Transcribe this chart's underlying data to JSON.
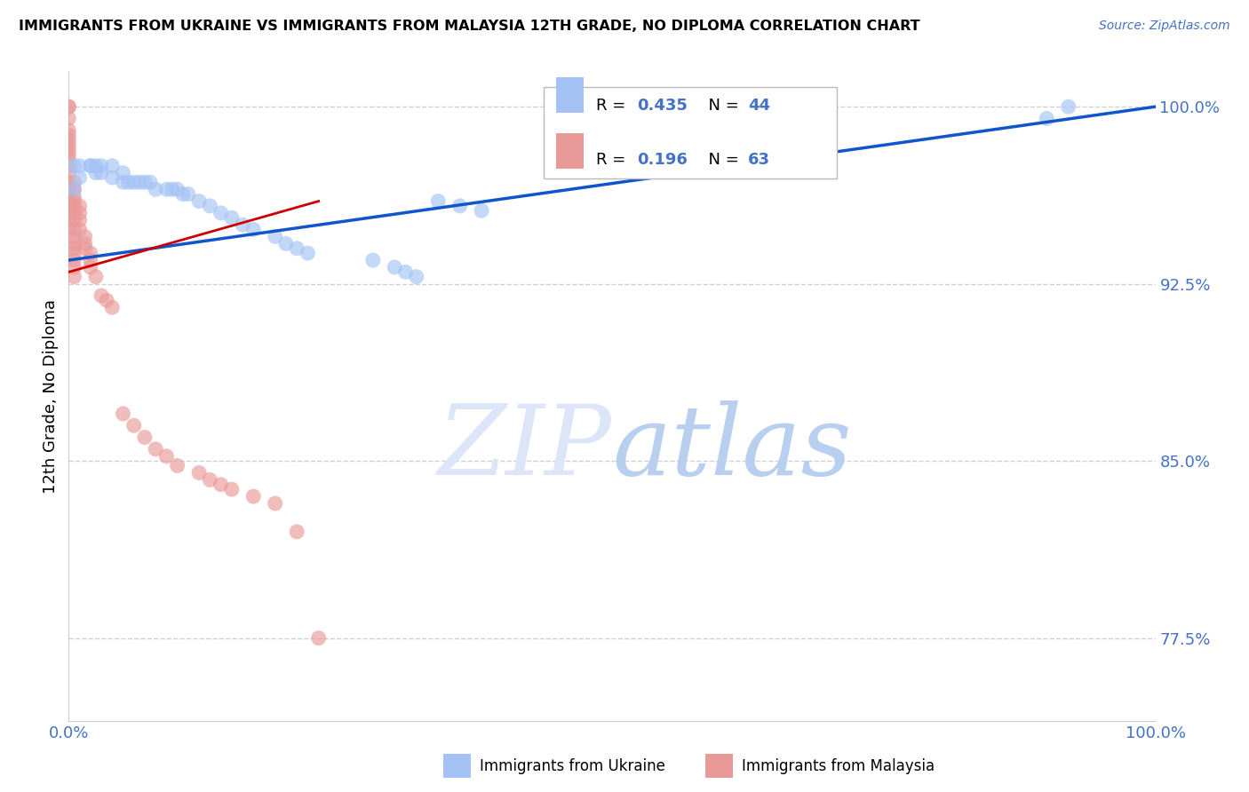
{
  "title": "IMMIGRANTS FROM UKRAINE VS IMMIGRANTS FROM MALAYSIA 12TH GRADE, NO DIPLOMA CORRELATION CHART",
  "source": "Source: ZipAtlas.com",
  "ylabel": "12th Grade, No Diploma",
  "r_ukraine": 0.435,
  "n_ukraine": 44,
  "r_malaysia": 0.196,
  "n_malaysia": 63,
  "ukraine_color": "#a4c2f4",
  "malaysia_color": "#ea9999",
  "trendline_ukraine_color": "#1155cc",
  "trendline_malaysia_color": "#cc0000",
  "legend_label_ukraine": "Immigrants from Ukraine",
  "legend_label_malaysia": "Immigrants from Malaysia",
  "xlim": [
    0.0,
    1.0
  ],
  "ylim": [
    0.74,
    1.015
  ],
  "yticks": [
    0.775,
    0.85,
    0.925,
    1.0
  ],
  "ytick_labels": [
    "77.5%",
    "85.0%",
    "92.5%",
    "100.0%"
  ],
  "ukraine_x": [
    0.005,
    0.005,
    0.01,
    0.01,
    0.02,
    0.02,
    0.025,
    0.025,
    0.03,
    0.03,
    0.04,
    0.04,
    0.05,
    0.05,
    0.055,
    0.06,
    0.065,
    0.07,
    0.075,
    0.08,
    0.09,
    0.095,
    0.1,
    0.105,
    0.11,
    0.12,
    0.13,
    0.14,
    0.15,
    0.16,
    0.17,
    0.19,
    0.2,
    0.21,
    0.22,
    0.28,
    0.3,
    0.31,
    0.32,
    0.34,
    0.36,
    0.38,
    0.9,
    0.92
  ],
  "ukraine_y": [
    0.975,
    0.965,
    0.975,
    0.97,
    0.975,
    0.975,
    0.975,
    0.972,
    0.975,
    0.972,
    0.975,
    0.97,
    0.972,
    0.968,
    0.968,
    0.968,
    0.968,
    0.968,
    0.968,
    0.965,
    0.965,
    0.965,
    0.965,
    0.963,
    0.963,
    0.96,
    0.958,
    0.955,
    0.953,
    0.95,
    0.948,
    0.945,
    0.942,
    0.94,
    0.938,
    0.935,
    0.932,
    0.93,
    0.928,
    0.96,
    0.958,
    0.956,
    0.995,
    1.0
  ],
  "malaysia_x": [
    0.0,
    0.0,
    0.0,
    0.0,
    0.0,
    0.0,
    0.0,
    0.0,
    0.0,
    0.0,
    0.0,
    0.0,
    0.0,
    0.0,
    0.0,
    0.0,
    0.0,
    0.0,
    0.0,
    0.0,
    0.005,
    0.005,
    0.005,
    0.005,
    0.005,
    0.005,
    0.005,
    0.005,
    0.005,
    0.005,
    0.005,
    0.005,
    0.005,
    0.005,
    0.005,
    0.01,
    0.01,
    0.01,
    0.01,
    0.015,
    0.015,
    0.015,
    0.02,
    0.02,
    0.02,
    0.025,
    0.03,
    0.035,
    0.04,
    0.05,
    0.06,
    0.07,
    0.08,
    0.09,
    0.1,
    0.12,
    0.13,
    0.14,
    0.15,
    0.17,
    0.19,
    0.21,
    0.23
  ],
  "malaysia_y": [
    1.0,
    1.0,
    0.995,
    0.99,
    0.988,
    0.986,
    0.984,
    0.982,
    0.98,
    0.978,
    0.975,
    0.972,
    0.968,
    0.965,
    0.962,
    0.96,
    0.958,
    0.955,
    0.952,
    0.948,
    0.968,
    0.965,
    0.962,
    0.96,
    0.958,
    0.955,
    0.952,
    0.948,
    0.945,
    0.942,
    0.94,
    0.938,
    0.935,
    0.932,
    0.928,
    0.958,
    0.955,
    0.952,
    0.948,
    0.945,
    0.942,
    0.94,
    0.938,
    0.935,
    0.932,
    0.928,
    0.92,
    0.918,
    0.915,
    0.87,
    0.865,
    0.86,
    0.855,
    0.852,
    0.848,
    0.845,
    0.842,
    0.84,
    0.838,
    0.835,
    0.832,
    0.82,
    0.775
  ]
}
